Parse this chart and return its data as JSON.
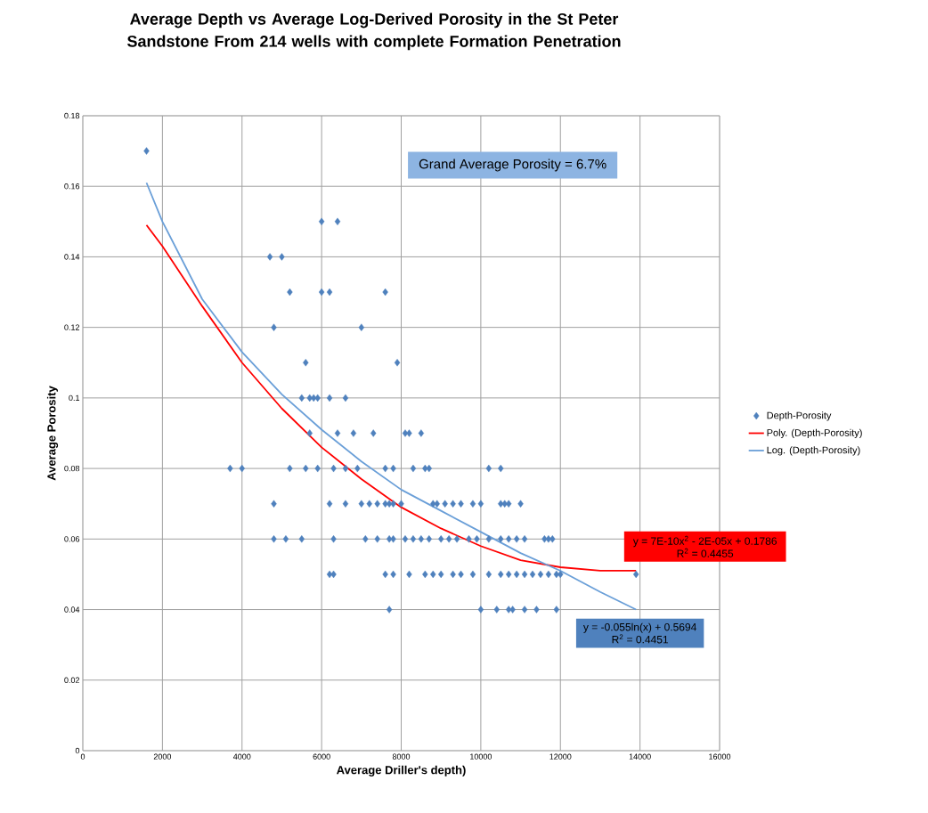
{
  "chart_data": {
    "type": "scatter",
    "title": "Average Depth vs Average Log-Derived Porosity in the St Peter Sandstone From 214 wells with complete Formation Penetration",
    "xlabel": "Average Driller's depth)",
    "ylabel": "Average Porosity",
    "xlim": [
      0,
      16000
    ],
    "xticks": [
      0,
      2000,
      4000,
      6000,
      8000,
      10000,
      12000,
      14000,
      16000
    ],
    "ylim": [
      0,
      0.18
    ],
    "yticks": [
      0,
      0.02,
      0.04,
      0.06,
      0.08,
      0.1,
      0.12,
      0.14,
      0.16,
      0.18
    ],
    "grid": true,
    "legend": "right",
    "annotations": [
      "Grand Average Porosity = 6.7%",
      "y = 7E-10x$^{2}$ - 2E-05x + 0.1786",
      "R$^{2}$ = 0.4455",
      "y = -0.055ln(x) + 0.5694",
      "R$^{2}$ = 0.4451"
    ],
    "series": [
      {
        "name": "Depth-Porosity",
        "marker": "diamond",
        "color": "#4f81bd",
        "x": [
          1600,
          6000,
          6400,
          4700,
          5000,
          5200,
          6000,
          6200,
          7600,
          4800,
          7000,
          5600,
          7900,
          5500,
          5700,
          5800,
          5900,
          6200,
          6600,
          5700,
          6400,
          6800,
          7300,
          8100,
          8200,
          8500,
          3700,
          4000,
          5200,
          5600,
          5900,
          6300,
          6600,
          6900,
          7600,
          7800,
          8300,
          8600,
          8700,
          10200,
          10500,
          4800,
          6200,
          6600,
          7000,
          7200,
          7400,
          7600,
          7700,
          7800,
          8000,
          8800,
          8900,
          9100,
          9300,
          9500,
          9800,
          10000,
          10500,
          10600,
          10700,
          11000,
          4800,
          5100,
          5500,
          6300,
          7100,
          7400,
          7700,
          7800,
          8100,
          8300,
          8500,
          8700,
          9000,
          9200,
          9400,
          9700,
          9900,
          10200,
          10500,
          10700,
          10900,
          11100,
          11600,
          11700,
          11800,
          6200,
          6300,
          7600,
          7800,
          8200,
          8600,
          8800,
          9000,
          9300,
          9500,
          9800,
          10200,
          10500,
          10700,
          10900,
          11100,
          11300,
          11500,
          11700,
          11900,
          12000,
          13900,
          7700,
          10000,
          10400,
          10700,
          10800,
          11100,
          11400,
          11900
        ],
        "values": [
          0.17,
          0.15,
          0.15,
          0.14,
          0.14,
          0.13,
          0.13,
          0.13,
          0.13,
          0.12,
          0.12,
          0.11,
          0.11,
          0.1,
          0.1,
          0.1,
          0.1,
          0.1,
          0.1,
          0.09,
          0.09,
          0.09,
          0.09,
          0.09,
          0.09,
          0.09,
          0.08,
          0.08,
          0.08,
          0.08,
          0.08,
          0.08,
          0.08,
          0.08,
          0.08,
          0.08,
          0.08,
          0.08,
          0.08,
          0.08,
          0.08,
          0.07,
          0.07,
          0.07,
          0.07,
          0.07,
          0.07,
          0.07,
          0.07,
          0.07,
          0.07,
          0.07,
          0.07,
          0.07,
          0.07,
          0.07,
          0.07,
          0.07,
          0.07,
          0.07,
          0.07,
          0.07,
          0.06,
          0.06,
          0.06,
          0.06,
          0.06,
          0.06,
          0.06,
          0.06,
          0.06,
          0.06,
          0.06,
          0.06,
          0.06,
          0.06,
          0.06,
          0.06,
          0.06,
          0.06,
          0.06,
          0.06,
          0.06,
          0.06,
          0.06,
          0.06,
          0.06,
          0.05,
          0.05,
          0.05,
          0.05,
          0.05,
          0.05,
          0.05,
          0.05,
          0.05,
          0.05,
          0.05,
          0.05,
          0.05,
          0.05,
          0.05,
          0.05,
          0.05,
          0.05,
          0.05,
          0.05,
          0.05,
          0.05,
          0.04,
          0.04,
          0.04,
          0.04,
          0.04,
          0.04,
          0.04,
          0.04
        ]
      },
      {
        "name": "Poly. (Depth-Porosity)",
        "type": "line",
        "marker": "none",
        "color": "#ff0000",
        "x": [
          1600,
          2000,
          3000,
          4000,
          5000,
          6000,
          7000,
          8000,
          9000,
          10000,
          11000,
          12000,
          13000,
          13900
        ],
        "values": [
          0.149,
          0.143,
          0.126,
          0.11,
          0.097,
          0.086,
          0.077,
          0.069,
          0.063,
          0.058,
          0.054,
          0.052,
          0.051,
          0.051
        ]
      },
      {
        "name": "Log. (Depth-Porosity)",
        "type": "line",
        "marker": "none",
        "color": "#6a9fd8",
        "x": [
          1600,
          2000,
          3000,
          4000,
          5000,
          6000,
          7000,
          8000,
          9000,
          10000,
          11000,
          12000,
          13000,
          13900
        ],
        "values": [
          0.161,
          0.15,
          0.128,
          0.113,
          0.101,
          0.091,
          0.082,
          0.074,
          0.068,
          0.062,
          0.056,
          0.051,
          0.045,
          0.04
        ]
      }
    ]
  }
}
